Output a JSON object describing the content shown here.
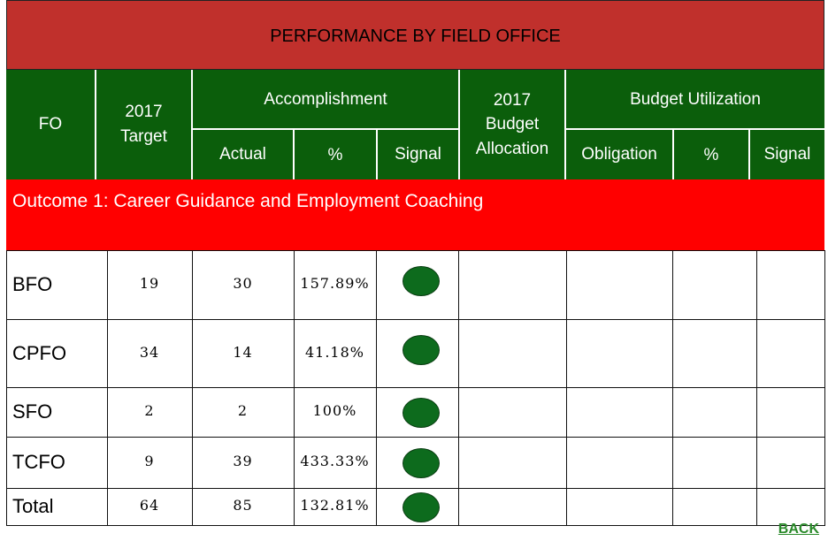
{
  "title": "PERFORMANCE BY FIELD OFFICE",
  "header": {
    "fo": "FO",
    "target_year": "2017",
    "target": "Target",
    "accomplishment": "Accomplishment",
    "actual": "Actual",
    "pct": "%",
    "signal": "Signal",
    "budget_year": "2017",
    "budget": "Budget",
    "allocation": "Allocation",
    "budget_utilization": "Budget Utilization",
    "obligation": "Obligation",
    "pct2": "%",
    "signal2": "Signal"
  },
  "outcome": "Outcome 1: Career Guidance and Employment Coaching",
  "rows": [
    {
      "fo": "BFO",
      "target": "19",
      "actual": "30",
      "pct": "157.89%",
      "signal_color": "#0d6b1d"
    },
    {
      "fo": "CPFO",
      "target": "34",
      "actual": "14",
      "pct": "41.18%",
      "signal_color": "#0d6b1d"
    },
    {
      "fo": "SFO",
      "target": "2",
      "actual": "2",
      "pct": "100%",
      "signal_color": "#0d6b1d"
    },
    {
      "fo": "TCFO",
      "target": "9",
      "actual": "39",
      "pct": "433.33%",
      "signal_color": "#0d6b1d"
    },
    {
      "fo": "Total",
      "target": "64",
      "actual": "85",
      "pct": "132.81%",
      "signal_color": "#0d6b1d"
    }
  ],
  "back_link": "BACK",
  "colors": {
    "title_bg": "#c0302c",
    "header_bg": "#0b5e0b",
    "outcome_bg": "#ff0000",
    "signal_green": "#0d6b1d"
  }
}
